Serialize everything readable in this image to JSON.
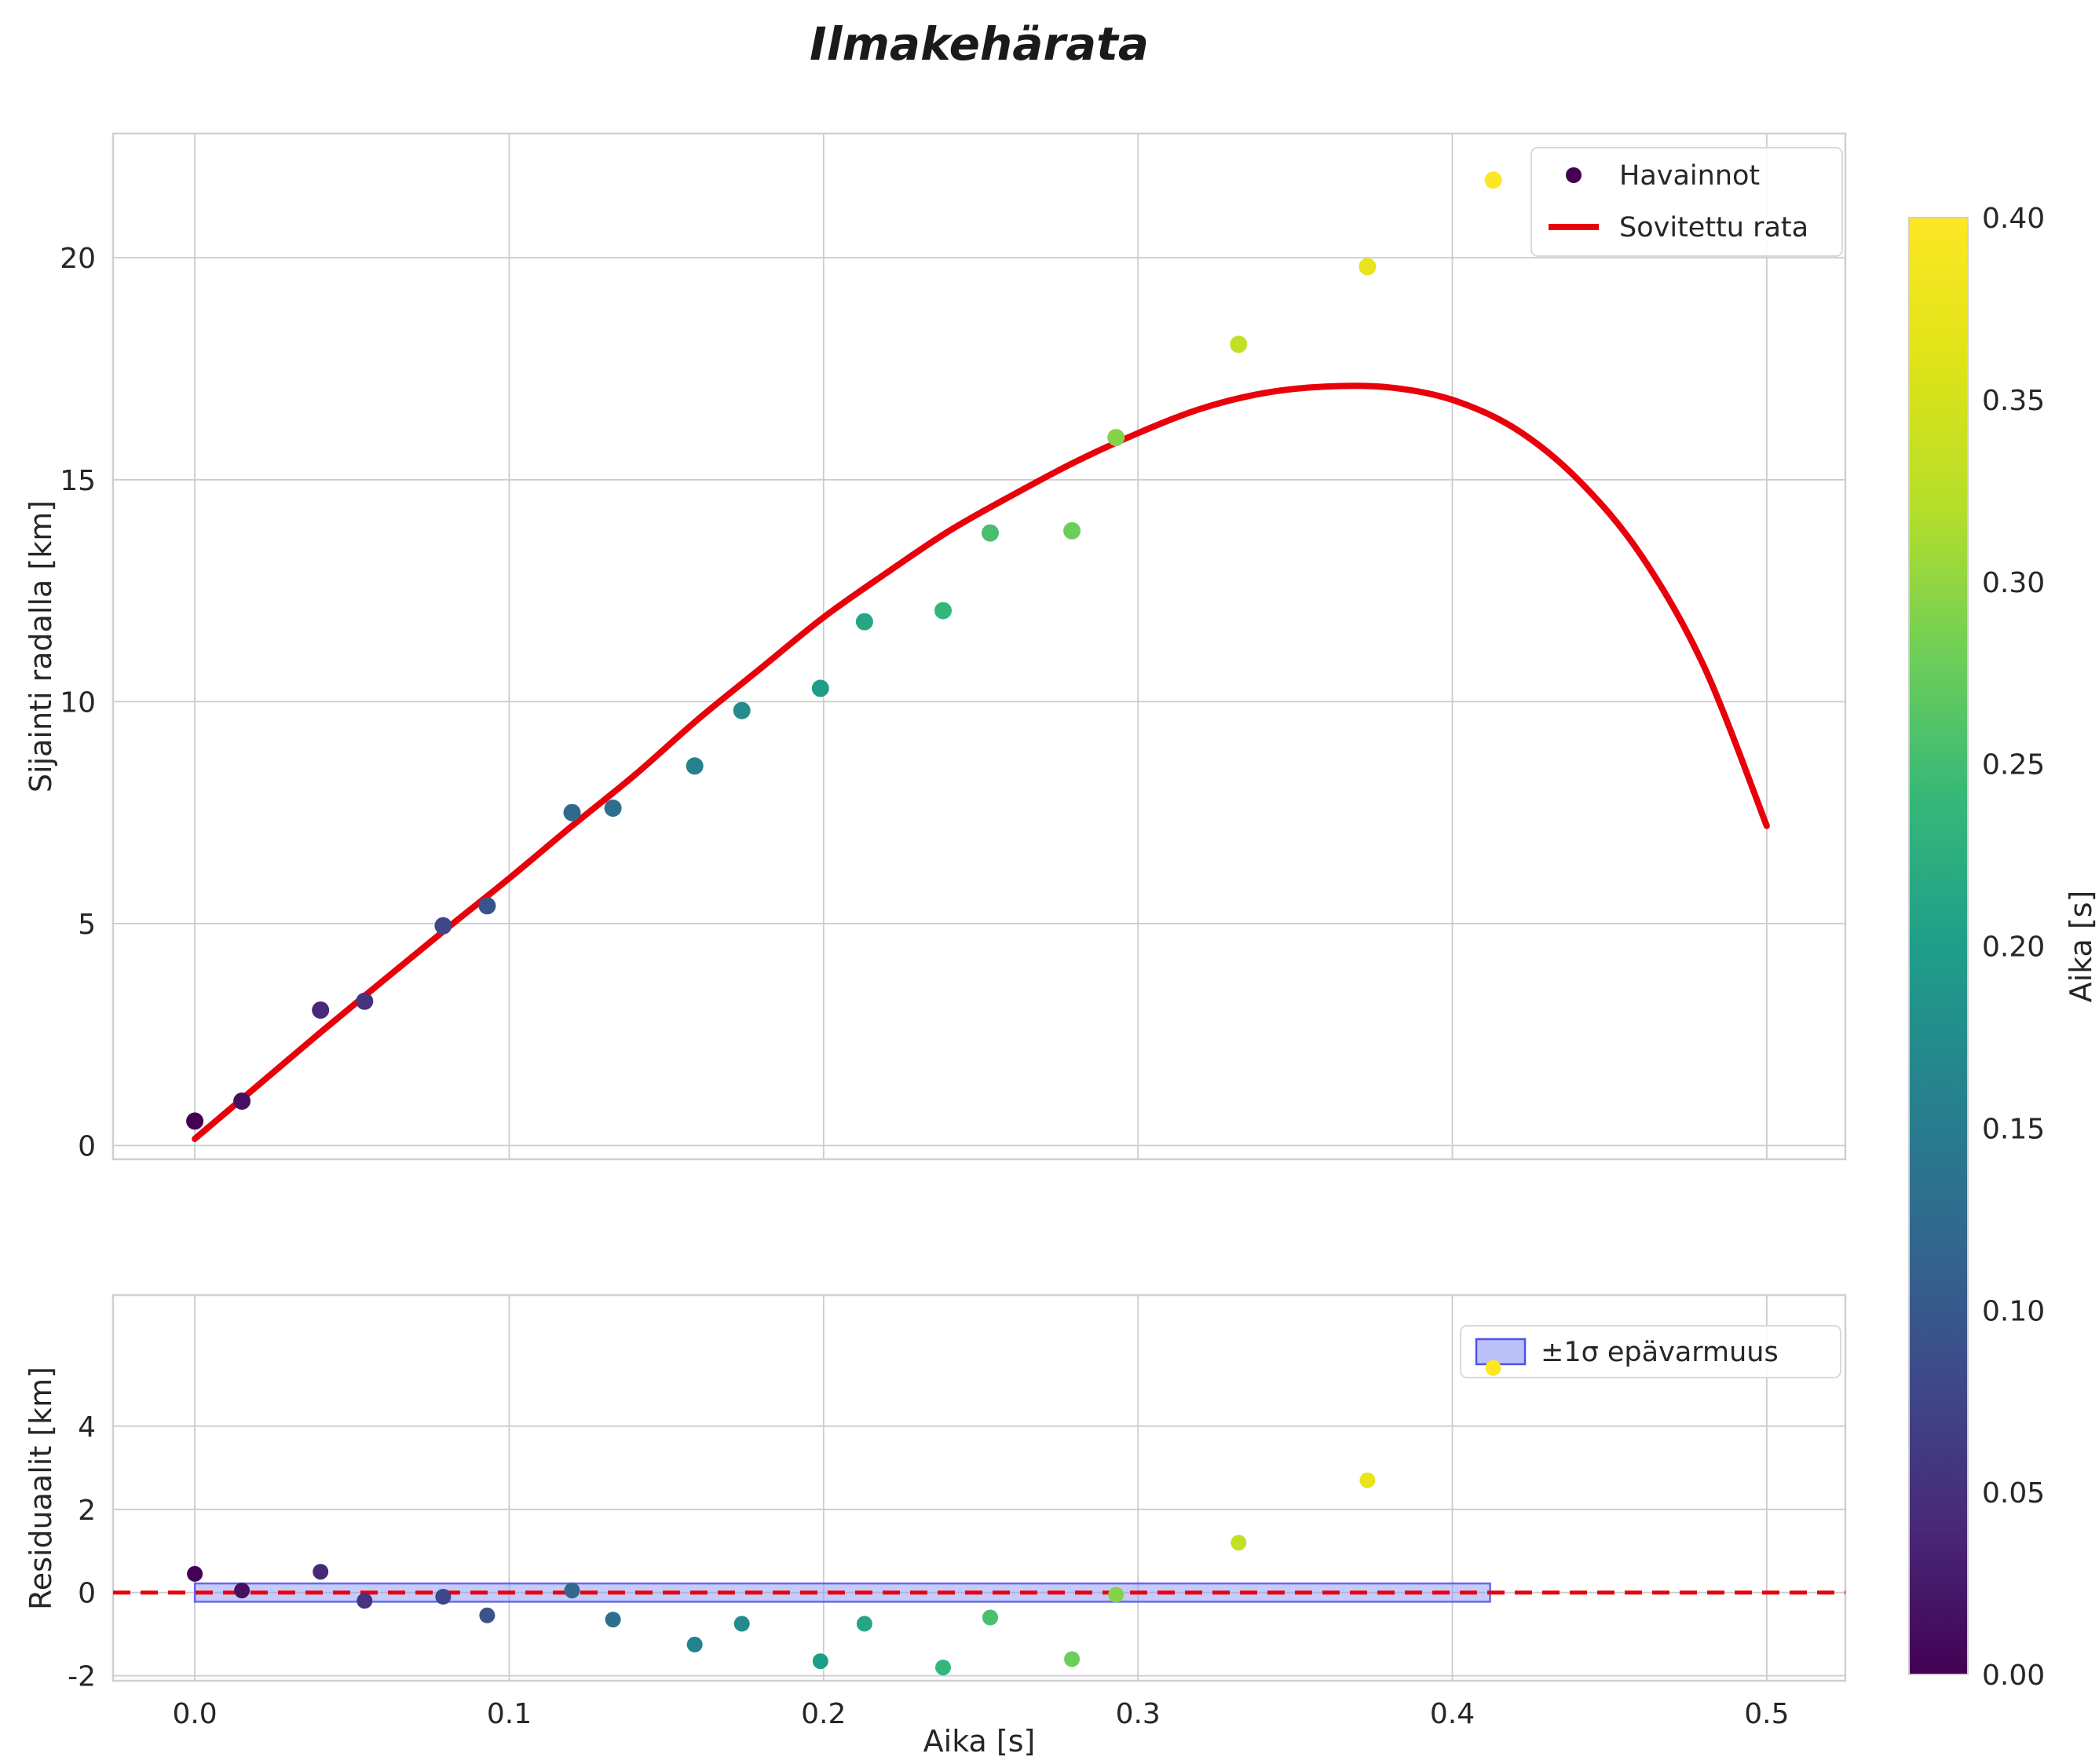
{
  "colors": {
    "curve": "#e8000b",
    "zero_line": "#e8000b",
    "band_fill": "#8f97f3",
    "band_edge": "#4d55e5",
    "grid": "#cccccc",
    "spine": "#d0d0d0",
    "text": "#262626",
    "legend_border": "#d9d9d9"
  },
  "colormap": {
    "name": "viridis",
    "stops": [
      [
        0.0,
        "#440154"
      ],
      [
        0.1,
        "#482878"
      ],
      [
        0.2,
        "#3e4989"
      ],
      [
        0.3,
        "#31688e"
      ],
      [
        0.4,
        "#26828e"
      ],
      [
        0.5,
        "#1f9e89"
      ],
      [
        0.6,
        "#35b779"
      ],
      [
        0.7,
        "#6ece58"
      ],
      [
        0.8,
        "#b5de2b"
      ],
      [
        0.9,
        "#dfe318"
      ],
      [
        1.0,
        "#fde725"
      ]
    ]
  },
  "chart_data": {
    "type": "scatter",
    "title": "Ilmakehärata",
    "xlabel": "Aika [s]",
    "xlim": [
      -0.026,
      0.525
    ],
    "xticks": {
      "values": [
        0.0,
        0.1,
        0.2,
        0.3,
        0.4,
        0.5
      ],
      "labels": [
        "0.0",
        "0.1",
        "0.2",
        "0.3",
        "0.4",
        "0.5"
      ]
    },
    "top_plot": {
      "ylabel": "Sijainti radalla [km]",
      "ylim": [
        -0.31,
        22.8
      ],
      "yticks": [
        0,
        5,
        10,
        15,
        20
      ],
      "legend": [
        {
          "label": "Havainnot",
          "type": "point"
        },
        {
          "label": "Sovitettu rata",
          "type": "line"
        }
      ],
      "points": {
        "x": [
          0.0,
          0.015,
          0.04,
          0.054,
          0.079,
          0.093,
          0.12,
          0.133,
          0.159,
          0.174,
          0.199,
          0.213,
          0.238,
          0.253,
          0.279,
          0.293,
          0.332,
          0.373,
          0.413
        ],
        "y": [
          0.55,
          1.0,
          3.05,
          3.25,
          4.95,
          5.4,
          7.5,
          7.6,
          8.55,
          9.8,
          10.3,
          11.8,
          12.05,
          13.8,
          13.85,
          15.95,
          18.05,
          19.8,
          21.75
        ],
        "color_by": "time",
        "color_range": [
          0.0,
          0.4
        ]
      },
      "curve": {
        "name": "Sovitettu rata",
        "x": [
          0.0,
          0.02,
          0.04,
          0.06,
          0.08,
          0.1,
          0.12,
          0.14,
          0.16,
          0.18,
          0.2,
          0.22,
          0.24,
          0.26,
          0.28,
          0.3,
          0.32,
          0.34,
          0.36,
          0.38,
          0.4,
          0.42,
          0.44,
          0.46,
          0.48,
          0.5
        ],
        "y": [
          0.15,
          1.35,
          2.55,
          3.72,
          4.88,
          6.02,
          7.2,
          8.35,
          9.6,
          10.75,
          11.9,
          12.9,
          13.85,
          14.65,
          15.4,
          16.05,
          16.6,
          16.95,
          17.1,
          17.08,
          16.8,
          16.15,
          15.0,
          13.3,
          10.8,
          7.2
        ]
      }
    },
    "residual_plot": {
      "ylabel": "Residuaalit [km]",
      "ylim": [
        -2.12,
        7.15
      ],
      "yticks": [
        -2,
        0,
        2,
        4
      ],
      "legend": [
        {
          "label": "±1σ epävarmuus",
          "type": "patch"
        }
      ],
      "zero_line": 0,
      "band": {
        "x0": 0.0,
        "x1": 0.412,
        "half_width": 0.22
      },
      "points": {
        "x": [
          0.0,
          0.015,
          0.04,
          0.054,
          0.079,
          0.093,
          0.12,
          0.133,
          0.159,
          0.174,
          0.199,
          0.213,
          0.238,
          0.253,
          0.279,
          0.293,
          0.332,
          0.373,
          0.413
        ],
        "y": [
          0.45,
          0.05,
          0.5,
          -0.2,
          -0.1,
          -0.55,
          0.05,
          -0.65,
          -1.25,
          -0.75,
          -1.65,
          -0.75,
          -1.8,
          -0.6,
          -1.6,
          -0.05,
          1.2,
          2.7,
          5.4
        ]
      }
    },
    "colorbar": {
      "label": "Aika [s]",
      "min": 0.0,
      "max": 0.4,
      "ticks": [
        "0.00",
        "0.05",
        "0.10",
        "0.15",
        "0.20",
        "0.25",
        "0.30",
        "0.35",
        "0.40"
      ]
    }
  }
}
